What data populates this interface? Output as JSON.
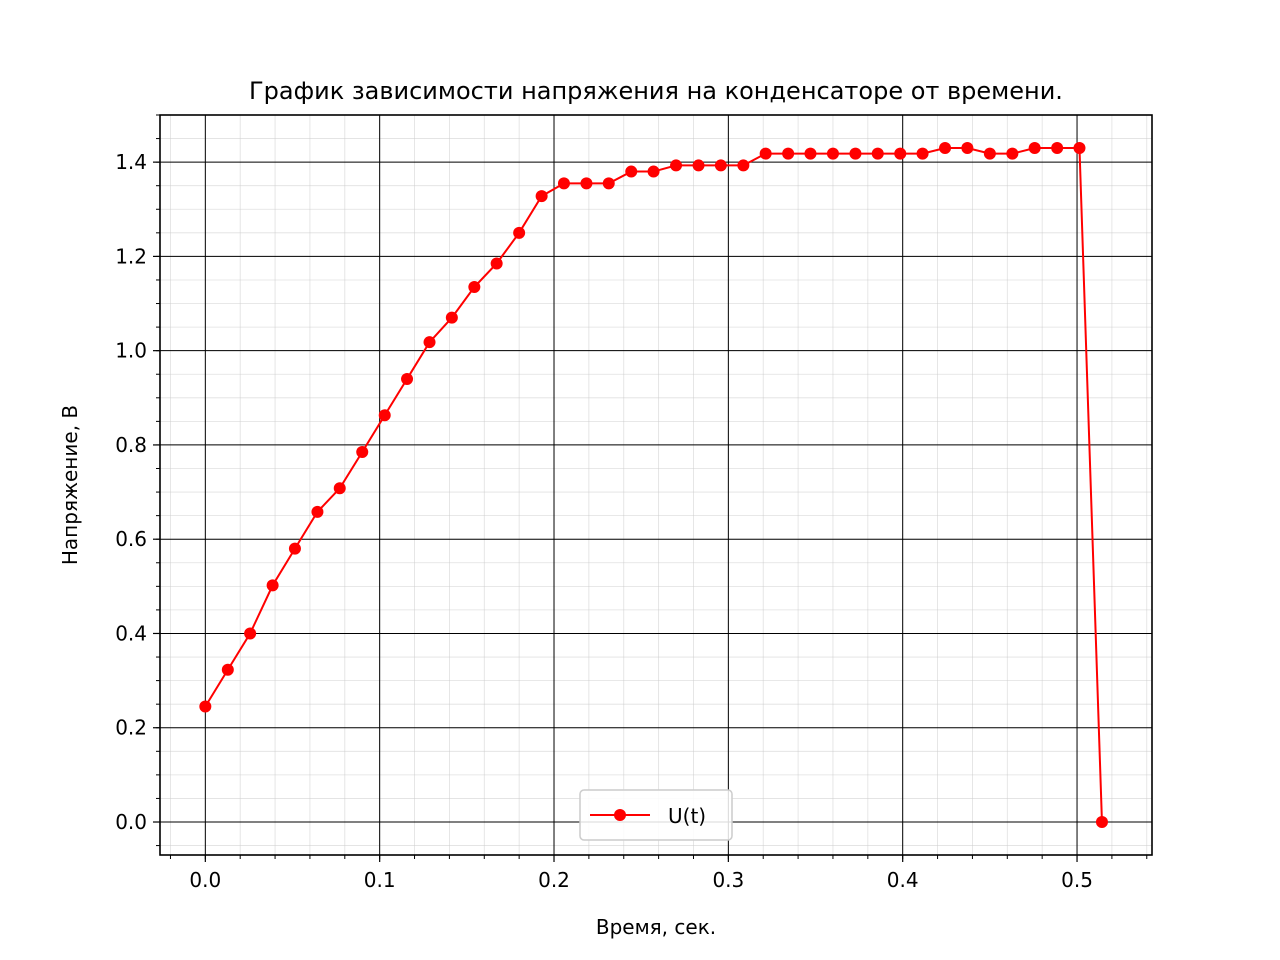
{
  "chart_data": {
    "type": "line",
    "title": "График зависимости напряжения на конденсаторе от времени.",
    "xlabel": "Время, сек.",
    "ylabel": "Напряжение, В",
    "xlim": [
      -0.026,
      0.543
    ],
    "ylim": [
      -0.07,
      1.5
    ],
    "xticks": [
      0.0,
      0.1,
      0.2,
      0.3,
      0.4,
      0.5
    ],
    "xtick_labels": [
      "0.0",
      "0.1",
      "0.2",
      "0.3",
      "0.4",
      "0.5"
    ],
    "yticks": [
      0.0,
      0.2,
      0.4,
      0.6,
      0.8,
      1.0,
      1.2,
      1.4
    ],
    "ytick_labels": [
      "0.0",
      "0.2",
      "0.4",
      "0.6",
      "0.8",
      "1.0",
      "1.2",
      "1.4"
    ],
    "grid": {
      "major": true,
      "minor": true
    },
    "legend": {
      "position": "lower-center",
      "entries": [
        "U(t)"
      ]
    },
    "series": [
      {
        "name": "U(t)",
        "color": "#ff0000",
        "marker": "circle",
        "x": [
          0.0,
          0.0129,
          0.0257,
          0.0386,
          0.0514,
          0.0643,
          0.0771,
          0.09,
          0.1029,
          0.1157,
          0.1286,
          0.1414,
          0.1543,
          0.1671,
          0.18,
          0.1929,
          0.2057,
          0.2186,
          0.2314,
          0.2443,
          0.2571,
          0.27,
          0.2829,
          0.2957,
          0.3086,
          0.3214,
          0.3343,
          0.3471,
          0.36,
          0.3729,
          0.3857,
          0.3986,
          0.4114,
          0.4243,
          0.4371,
          0.45,
          0.4629,
          0.4757,
          0.4886,
          0.5014,
          0.5143
        ],
        "y": [
          0.245,
          0.323,
          0.4,
          0.502,
          0.58,
          0.658,
          0.708,
          0.785,
          0.863,
          0.94,
          1.018,
          1.07,
          1.135,
          1.185,
          1.25,
          1.328,
          1.355,
          1.355,
          1.355,
          1.38,
          1.38,
          1.393,
          1.393,
          1.393,
          1.393,
          1.418,
          1.418,
          1.418,
          1.418,
          1.418,
          1.418,
          1.418,
          1.418,
          1.43,
          1.43,
          1.418,
          1.418,
          1.43,
          1.43,
          1.43,
          0.0
        ]
      }
    ]
  }
}
